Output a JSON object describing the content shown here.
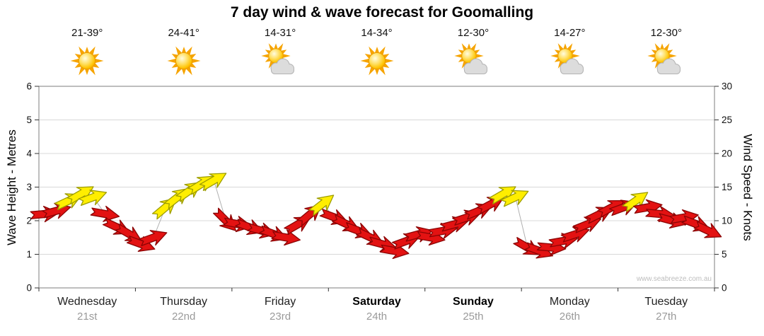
{
  "title": "7 day wind & wave forecast for Goomalling",
  "watermark": "www.seabreeze.com.au",
  "axes": {
    "left_label": "Wave Height - Metres",
    "right_label": "Wind Speed - Knots",
    "left_ticks": [
      0,
      1,
      2,
      3,
      4,
      5,
      6
    ],
    "right_ticks": [
      0,
      5,
      10,
      15,
      20,
      25,
      30
    ]
  },
  "days": [
    {
      "name": "Wednesday",
      "date": "21st",
      "temp_range": "21-39°",
      "icon": "sun",
      "weekend": false
    },
    {
      "name": "Thursday",
      "date": "22nd",
      "temp_range": "24-41°",
      "icon": "sun",
      "weekend": false
    },
    {
      "name": "Friday",
      "date": "23rd",
      "temp_range": "14-31°",
      "icon": "sun-cloud",
      "weekend": false
    },
    {
      "name": "Saturday",
      "date": "24th",
      "temp_range": "14-34°",
      "icon": "sun",
      "weekend": true
    },
    {
      "name": "Sunday",
      "date": "25th",
      "temp_range": "12-30°",
      "icon": "sun-cloud",
      "weekend": true
    },
    {
      "name": "Monday",
      "date": "26th",
      "temp_range": "14-27°",
      "icon": "sun-cloud",
      "weekend": false
    },
    {
      "name": "Tuesday",
      "date": "27th",
      "temp_range": "12-30°",
      "icon": "sun-cloud",
      "weekend": false
    }
  ],
  "chart_data": {
    "type": "scatter",
    "subtype": "wind-direction-arrows",
    "categories": [
      "Wednesday 21st",
      "Thursday 22nd",
      "Friday 23rd",
      "Saturday 24th",
      "Sunday 25th",
      "Monday 26th",
      "Tuesday 27th"
    ],
    "left_axis": {
      "label": "Wave Height - Metres",
      "range": [
        0,
        6
      ]
    },
    "right_axis": {
      "label": "Wind Speed - Knots",
      "range": [
        0,
        30
      ]
    },
    "grid": "horizontal-light-gray",
    "point_format": [
      "day_index",
      "time_slot_3h",
      "wind_knots",
      "arrow_angle_deg_screen",
      "color"
    ],
    "colors": {
      "red_arrow_fill": "#e31212",
      "red_arrow_stroke": "#8b0404",
      "yellow_arrow_fill": "#ffee00",
      "yellow_arrow_stroke": "#9d9d00",
      "connector": "#b0b0b0"
    },
    "points": [
      [
        0,
        0,
        11,
        -5,
        "r"
      ],
      [
        0,
        1,
        11.5,
        -15,
        "r"
      ],
      [
        0,
        2,
        13,
        -25,
        "y"
      ],
      [
        0,
        3,
        14,
        -30,
        "y"
      ],
      [
        0,
        4,
        13.5,
        -20,
        "y"
      ],
      [
        0,
        5,
        11,
        10,
        "r"
      ],
      [
        0,
        6,
        9,
        25,
        "r"
      ],
      [
        0,
        7,
        8,
        30,
        "r"
      ],
      [
        1,
        0,
        6.5,
        20,
        "r"
      ],
      [
        1,
        1,
        7.5,
        -20,
        "r"
      ],
      [
        1,
        2,
        12,
        -40,
        "y"
      ],
      [
        1,
        3,
        13.5,
        -38,
        "y"
      ],
      [
        1,
        4,
        14.5,
        -35,
        "y"
      ],
      [
        1,
        5,
        15.5,
        -32,
        "y"
      ],
      [
        1,
        6,
        16,
        -30,
        "y"
      ],
      [
        1,
        7,
        10,
        45,
        "r"
      ],
      [
        2,
        0,
        9.5,
        10,
        "r"
      ],
      [
        2,
        1,
        9,
        20,
        "r"
      ],
      [
        2,
        2,
        8.5,
        15,
        "r"
      ],
      [
        2,
        3,
        8,
        20,
        "r"
      ],
      [
        2,
        4,
        7.5,
        10,
        "r"
      ],
      [
        2,
        5,
        9.5,
        -30,
        "r"
      ],
      [
        2,
        6,
        11,
        -40,
        "r"
      ],
      [
        2,
        7,
        12.5,
        -38,
        "y"
      ],
      [
        3,
        0,
        10.5,
        20,
        "r"
      ],
      [
        3,
        1,
        9.5,
        25,
        "r"
      ],
      [
        3,
        2,
        8.5,
        20,
        "r"
      ],
      [
        3,
        3,
        7.5,
        25,
        "r"
      ],
      [
        3,
        4,
        6.5,
        15,
        "r"
      ],
      [
        3,
        5,
        5.5,
        10,
        "r"
      ],
      [
        3,
        6,
        7,
        -20,
        "r"
      ],
      [
        3,
        7,
        8,
        -15,
        "r"
      ],
      [
        4,
        0,
        7.5,
        10,
        "r"
      ],
      [
        4,
        1,
        8.5,
        -10,
        "r"
      ],
      [
        4,
        2,
        9.5,
        -15,
        "r"
      ],
      [
        4,
        3,
        10.5,
        -18,
        "r"
      ],
      [
        4,
        4,
        11.5,
        -22,
        "r"
      ],
      [
        4,
        5,
        12.5,
        -28,
        "r"
      ],
      [
        4,
        6,
        14,
        -30,
        "y"
      ],
      [
        4,
        7,
        13.5,
        -25,
        "y"
      ],
      [
        5,
        0,
        6,
        30,
        "r"
      ],
      [
        5,
        1,
        5.5,
        20,
        "r"
      ],
      [
        5,
        2,
        6,
        5,
        "r"
      ],
      [
        5,
        3,
        7,
        -10,
        "r"
      ],
      [
        5,
        4,
        8,
        -18,
        "r"
      ],
      [
        5,
        5,
        9.5,
        -22,
        "r"
      ],
      [
        5,
        6,
        11,
        -26,
        "r"
      ],
      [
        5,
        7,
        12,
        -28,
        "r"
      ],
      [
        6,
        0,
        12,
        -20,
        "r"
      ],
      [
        6,
        1,
        13,
        -35,
        "y"
      ],
      [
        6,
        2,
        12,
        -10,
        "r"
      ],
      [
        6,
        3,
        11,
        5,
        "r"
      ],
      [
        6,
        4,
        10,
        15,
        "r"
      ],
      [
        6,
        5,
        10.5,
        -10,
        "r"
      ],
      [
        6,
        6,
        9.5,
        20,
        "r"
      ],
      [
        6,
        7,
        8.5,
        25,
        "r"
      ]
    ]
  }
}
